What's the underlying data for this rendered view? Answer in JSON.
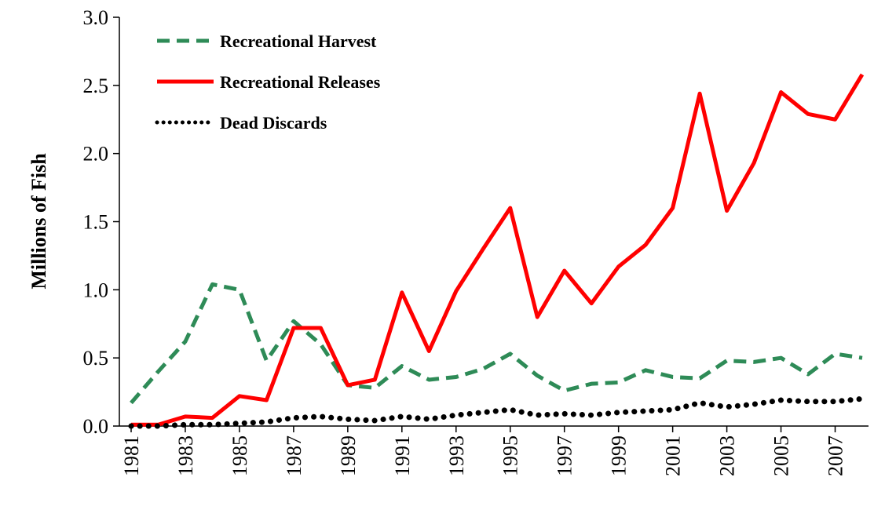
{
  "chart_data": {
    "type": "line",
    "y_label": "Millions of Fish",
    "x": [
      1981,
      1982,
      1983,
      1984,
      1985,
      1986,
      1987,
      1988,
      1989,
      1990,
      1991,
      1992,
      1993,
      1994,
      1995,
      1996,
      1997,
      1998,
      1999,
      2000,
      2001,
      2002,
      2003,
      2004,
      2005,
      2006,
      2007,
      2008
    ],
    "xlim": [
      1981,
      2008
    ],
    "xticks": [
      1981,
      1983,
      1985,
      1987,
      1989,
      1991,
      1993,
      1995,
      1997,
      1999,
      2001,
      2003,
      2005,
      2007
    ],
    "ylim": [
      0,
      3
    ],
    "yticks": [
      {
        "value": 0,
        "label": "0.0"
      },
      0.5,
      {
        "value": 1,
        "label": "1.0"
      },
      1.5,
      {
        "value": 2,
        "label": "2.0"
      },
      2.5,
      {
        "value": 3,
        "label": "3.0"
      }
    ],
    "legend": "upper left",
    "series": [
      {
        "name": "Recreational Harvest",
        "color": "#2e8b57",
        "dash": "dashed",
        "values": [
          0.17,
          0.4,
          0.62,
          1.04,
          1.0,
          0.48,
          0.77,
          0.6,
          0.3,
          0.28,
          0.44,
          0.34,
          0.36,
          0.42,
          0.53,
          0.37,
          0.26,
          0.31,
          0.32,
          0.41,
          0.36,
          0.35,
          0.48,
          0.47,
          0.5,
          0.38,
          0.53,
          0.5
        ]
      },
      {
        "name": "Recreational Releases",
        "color": "#ff0000",
        "dash": "solid",
        "values": [
          0.01,
          0.01,
          0.07,
          0.06,
          0.22,
          0.19,
          0.72,
          0.72,
          0.3,
          0.34,
          0.98,
          0.55,
          0.99,
          1.3,
          1.6,
          0.8,
          1.14,
          0.9,
          1.17,
          1.33,
          1.6,
          2.44,
          1.58,
          1.93,
          2.45,
          2.29,
          2.25,
          2.58
        ]
      },
      {
        "name": "Dead Discards",
        "color": "#000000",
        "dash": "dotted",
        "values": [
          0.0,
          0.0,
          0.01,
          0.01,
          0.02,
          0.03,
          0.06,
          0.07,
          0.05,
          0.04,
          0.07,
          0.05,
          0.08,
          0.1,
          0.12,
          0.08,
          0.09,
          0.08,
          0.1,
          0.11,
          0.12,
          0.17,
          0.14,
          0.16,
          0.19,
          0.18,
          0.18,
          0.2
        ]
      }
    ]
  }
}
